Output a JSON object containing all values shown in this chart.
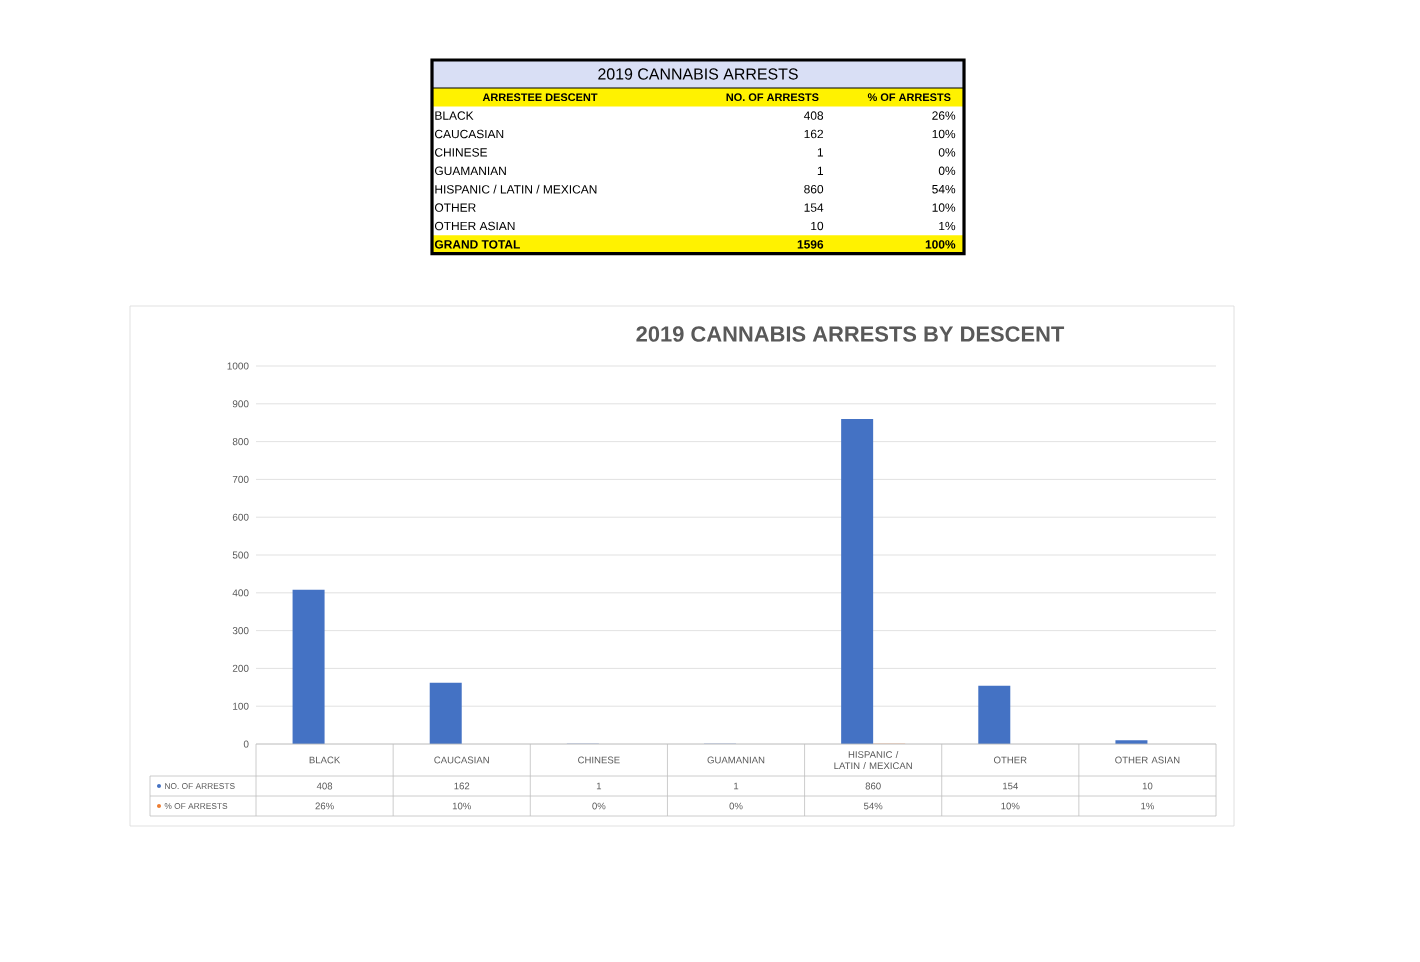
{
  "chart_data": [
    {
      "type": "other",
      "title": "2019 CANNABIS ARRESTS",
      "legend_title": "ARRESTEE DESCENT",
      "data_labels": true,
      "categories": [
        "BLACK",
        "CAUCASIAN",
        "CHINESE",
        "GUAMANIAN",
        "HISPANIC / LATIN / MEXICAN",
        "OTHER",
        "OTHER ASIAN",
        "GRAND TOTAL"
      ],
      "series": [
        {
          "name": "NO. OF ARRESTS",
          "values": [
            408,
            162,
            1,
            1,
            860,
            154,
            10,
            1596
          ]
        },
        {
          "name": "% OF ARRESTS",
          "values": [
            26,
            10,
            0,
            0,
            54,
            10,
            1,
            100
          ],
          "value_labels": [
            "26%",
            "10%",
            "0%",
            "0%",
            "54%",
            "10%",
            "1%",
            "100%"
          ]
        }
      ]
    },
    {
      "type": "bar",
      "title": "2019 CANNABIS ARRESTS BY DESCENT",
      "categories": [
        "BLACK",
        "CAUCASIAN",
        "CHINESE",
        "GUAMANIAN",
        "HISPANIC / LATIN / MEXICAN",
        "OTHER",
        "OTHER ASIAN"
      ],
      "series": [
        {
          "name": "NO. OF ARRESTS",
          "color": "#4472c4",
          "values": [
            408,
            162,
            1,
            1,
            860,
            154,
            10
          ]
        },
        {
          "name": "% OF ARRESTS",
          "color": "#ed7d31",
          "values": [
            0.26,
            0.1,
            0,
            0,
            0.54,
            0.1,
            0.01
          ],
          "value_labels": [
            "26%",
            "10%",
            "0%",
            "0%",
            "54%",
            "10%",
            "1%"
          ]
        }
      ],
      "data_labels": true,
      "ylim": [
        0,
        1000
      ],
      "yticks": [
        0,
        100,
        200,
        300,
        400,
        500,
        600,
        700,
        800,
        900,
        1000
      ],
      "grid": "y",
      "legend": "bottom"
    }
  ]
}
